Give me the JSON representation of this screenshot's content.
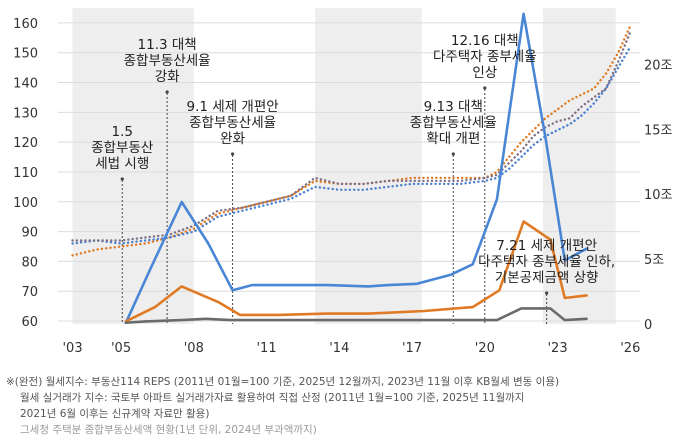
{
  "chart_data": {
    "type": "line",
    "title": "",
    "x_tick_labels": [
      "'03",
      "'05",
      "'08",
      "'11",
      "'14",
      "'17",
      "'20",
      "'23",
      "'26"
    ],
    "x_tick_values": [
      2003,
      2005,
      2008,
      2011,
      2014,
      2017,
      2020,
      2023,
      2026
    ],
    "xlim": [
      2002.4,
      2026.4
    ],
    "left_axis": {
      "ticks": [
        "60",
        "70",
        "80",
        "90",
        "100",
        "110",
        "120",
        "130",
        "140",
        "150",
        "160"
      ],
      "ylim": [
        59,
        165
      ]
    },
    "right_axis": {
      "ticks": [
        "0",
        "5조",
        "10조",
        "15조",
        "20조"
      ],
      "ylim": [
        0,
        24.35
      ]
    },
    "shaded_periods": [
      [
        2003.0,
        2008.0
      ],
      [
        2013.0,
        2017.4
      ],
      [
        2022.4,
        2025.4
      ]
    ],
    "series": [
      {
        "name": "orange-dotted",
        "axis": "left",
        "style": "dotted",
        "color": "#e07a24",
        "x": [
          2003,
          2004,
          2005,
          2006,
          2007,
          2008,
          2009,
          2010,
          2011,
          2012,
          2013,
          2014,
          2015,
          2016,
          2017,
          2018,
          2019,
          2020,
          2020.5,
          2021,
          2021.5,
          2022,
          2022.5,
          2023,
          2023.5,
          2024,
          2024.5,
          2025,
          2025.5,
          2026
        ],
        "y": [
          82,
          84,
          85,
          86,
          88,
          91,
          96,
          98,
          100,
          102,
          107,
          106,
          106,
          107,
          108,
          108,
          108,
          108,
          110,
          115,
          120,
          124,
          128,
          131,
          134,
          136,
          138,
          143,
          150,
          159
        ]
      },
      {
        "name": "blue-dotted",
        "axis": "left",
        "style": "dotted",
        "color": "#4a80d0",
        "x": [
          2003,
          2004,
          2005,
          2006,
          2007,
          2008,
          2009,
          2010,
          2011,
          2012,
          2013,
          2014,
          2015,
          2016,
          2017,
          2018,
          2019,
          2020,
          2020.5,
          2021,
          2021.5,
          2022,
          2022.5,
          2023,
          2023.5,
          2024,
          2024.5,
          2025,
          2025.5,
          2026
        ],
        "y": [
          86,
          87,
          86,
          87,
          88,
          90,
          95,
          97,
          99,
          101,
          105,
          104,
          104,
          105,
          106,
          106,
          106,
          107,
          108,
          111,
          115,
          119,
          122,
          124,
          126,
          129,
          133,
          138,
          145,
          152
        ]
      },
      {
        "name": "gray-dotted",
        "axis": "left",
        "style": "dotted",
        "color": "#7f6f86",
        "x": [
          2003,
          2004,
          2005,
          2006,
          2007,
          2008,
          2009,
          2010,
          2011,
          2012,
          2013,
          2014,
          2015,
          2016,
          2017,
          2018,
          2019,
          2020,
          2020.5,
          2021,
          2021.5,
          2022,
          2022.5,
          2023,
          2023.5,
          2024,
          2024.5,
          2025,
          2025.5,
          2026
        ],
        "y": [
          87,
          87,
          87,
          88,
          89,
          92,
          97,
          98,
          100,
          102,
          108,
          106,
          106,
          107,
          107,
          107,
          107,
          108,
          109,
          113,
          117,
          122,
          125,
          127,
          128,
          132,
          135,
          138,
          147,
          157
        ]
      },
      {
        "name": "blue-line",
        "axis": "right",
        "style": "solid",
        "color": "#4a86d6",
        "x": [
          2005.2,
          2006.2,
          2007.5,
          2008.6,
          2009.6,
          2010.4,
          2011.5,
          2013.5,
          2015.2,
          2016.0,
          2017.2,
          2018.6,
          2019.5,
          2020.5,
          2021.6,
          2022.5,
          2023.3,
          2024.2
        ],
        "y": [
          0.1,
          4.2,
          9.4,
          6.2,
          2.6,
          3.0,
          3.0,
          3.0,
          2.9,
          3.0,
          3.1,
          3.8,
          4.6,
          9.6,
          23.9,
          14.4,
          4.9,
          5.8
        ]
      },
      {
        "name": "orange-line",
        "axis": "right",
        "style": "solid",
        "color": "#e07a24",
        "x": [
          2005.2,
          2006.4,
          2007.5,
          2009.0,
          2009.9,
          2011.5,
          2013.5,
          2015.2,
          2017.5,
          2019.5,
          2020.6,
          2021.6,
          2022.7,
          2023.3,
          2024.2
        ],
        "y": [
          0.2,
          1.3,
          2.9,
          1.7,
          0.7,
          0.7,
          0.8,
          0.8,
          1.0,
          1.3,
          2.6,
          7.9,
          6.5,
          2.0,
          2.2
        ]
      },
      {
        "name": "gray-line",
        "axis": "right",
        "style": "solid",
        "color": "#6b6b6b",
        "x": [
          2005.2,
          2006.0,
          2007.5,
          2008.5,
          2009.5,
          2011.0,
          2014.0,
          2017.0,
          2019.0,
          2020.5,
          2021.5,
          2022.7,
          2023.3,
          2024.2
        ],
        "y": [
          0.1,
          0.2,
          0.3,
          0.4,
          0.3,
          0.3,
          0.3,
          0.3,
          0.3,
          0.3,
          1.2,
          1.2,
          0.3,
          0.4
        ]
      }
    ],
    "annotations": [
      {
        "x": 2005.05,
        "lines": [
          "1.5",
          "종합부동산",
          "세법 시행"
        ]
      },
      {
        "x": 2006.9,
        "lines": [
          "11.3 대책",
          "종합부동산세율",
          "강화"
        ]
      },
      {
        "x": 2009.6,
        "lines": [
          "9.1 세제 개편안",
          "종합부동산세율",
          "완화"
        ]
      },
      {
        "x": 2018.7,
        "lines": [
          "9.13 대책",
          "종합부동산세율",
          "확대 개편"
        ]
      },
      {
        "x": 2020.0,
        "lines": [
          "12.16 대책",
          "다주택자 종부세율",
          "인상"
        ]
      },
      {
        "x": 2022.55,
        "lines": [
          "7.21 세제 개편안",
          "다주택자 종부세율 인하,",
          "기본공제금액 상향"
        ]
      }
    ]
  },
  "footnotes": [
    "※(완전) 월세지수: 부동산114 REPS (2011년 01월=100 기준, 2025년 12월까지, 2023년 11월 이후 KB월세 변동 이용)",
    "월세 실거래가 지수: 국토부 아파트 실거래가자료 활용하여 직접 산정 (2011년 1월=100 기준, 2025년 11월까지",
    "2021년 6월 이후는 신규계약 자료만 활용)",
    "그세청 주택분 종합부동산세액 현황(1년 단위, 2024년 부과액까지)"
  ]
}
